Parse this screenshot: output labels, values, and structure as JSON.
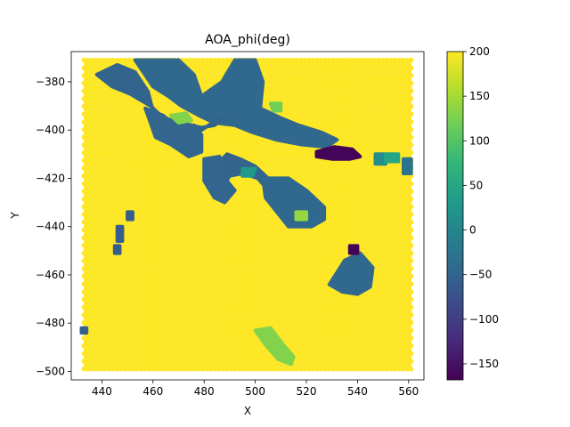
{
  "chart_data": {
    "type": "scatter",
    "title": "AOA_phi(deg)",
    "xlabel": "X",
    "ylabel": "Y",
    "xlim": [
      428,
      566
    ],
    "ylim": [
      -503.5,
      -367.5
    ],
    "x_ticks": [
      440,
      460,
      480,
      500,
      520,
      540,
      560
    ],
    "y_ticks": [
      -380,
      -400,
      -420,
      -440,
      -460,
      -480,
      -500
    ],
    "colorbar": {
      "colormap": "viridis",
      "range": [
        -168,
        200
      ],
      "ticks": [
        200,
        150,
        100,
        50,
        0,
        -50,
        -100,
        -150
      ],
      "colors": [
        "#440154",
        "#482878",
        "#3e4989",
        "#31688e",
        "#26828e",
        "#1f9e89",
        "#35b779",
        "#6ece58",
        "#b5de2b",
        "#fde725"
      ]
    },
    "grid": false,
    "background_point_value": 200,
    "background_region": {
      "x": [
        433,
        561
      ],
      "y": [
        -499,
        -371
      ]
    },
    "regions": [
      {
        "polygon": [
          [
            453,
            -371
          ],
          [
            470,
            -371
          ],
          [
            476,
            -377
          ],
          [
            479,
            -386
          ],
          [
            487,
            -380
          ],
          [
            492,
            -371
          ],
          [
            500,
            -371
          ],
          [
            503,
            -380
          ],
          [
            502,
            -391
          ],
          [
            510,
            -395
          ],
          [
            517,
            -398
          ],
          [
            526,
            -401
          ],
          [
            532,
            -404
          ],
          [
            528,
            -407
          ],
          [
            518,
            -406
          ],
          [
            508,
            -404
          ],
          [
            499,
            -401
          ],
          [
            492,
            -398
          ],
          [
            484,
            -397
          ],
          [
            478,
            -394
          ],
          [
            471,
            -390
          ],
          [
            466,
            -386
          ],
          [
            460,
            -382
          ]
        ],
        "value": -45
      },
      {
        "polygon": [
          [
            438,
            -377
          ],
          [
            446,
            -373
          ],
          [
            453,
            -376
          ],
          [
            458,
            -384
          ],
          [
            460,
            -392
          ],
          [
            467,
            -397
          ],
          [
            473,
            -398
          ],
          [
            479,
            -400
          ],
          [
            486,
            -395
          ],
          [
            491,
            -393
          ],
          [
            484,
            -398
          ],
          [
            479,
            -399
          ],
          [
            471,
            -397
          ],
          [
            464,
            -395
          ],
          [
            459,
            -390
          ],
          [
            451,
            -385
          ],
          [
            444,
            -382
          ]
        ],
        "value": -50
      },
      {
        "polygon": [
          [
            457,
            -391
          ],
          [
            464,
            -394
          ],
          [
            470,
            -399
          ],
          [
            476,
            -398
          ],
          [
            479,
            -402
          ],
          [
            479,
            -409
          ],
          [
            474,
            -411
          ],
          [
            467,
            -406
          ],
          [
            461,
            -403
          ],
          [
            459,
            -397
          ]
        ],
        "value": -48
      },
      {
        "polygon": [
          [
            467,
            -394
          ],
          [
            473,
            -393
          ],
          [
            475,
            -396
          ],
          [
            470,
            -397
          ]
        ],
        "value": 130
      },
      {
        "polygon": [
          [
            506,
            -389
          ],
          [
            510,
            -389
          ],
          [
            510,
            -392
          ],
          [
            507,
            -392
          ]
        ],
        "value": 120
      },
      {
        "polygon": [
          [
            485,
            -414
          ],
          [
            489,
            -410
          ],
          [
            494,
            -412
          ],
          [
            500,
            -415
          ],
          [
            505,
            -420
          ],
          [
            510,
            -425
          ],
          [
            513,
            -427
          ],
          [
            518,
            -426
          ],
          [
            520,
            -429
          ],
          [
            519,
            -434
          ],
          [
            515,
            -436
          ],
          [
            510,
            -431
          ],
          [
            506,
            -426
          ],
          [
            501,
            -420
          ],
          [
            495,
            -418
          ],
          [
            490,
            -419
          ],
          [
            487,
            -424
          ]
        ],
        "value": -50
      },
      {
        "polygon": [
          [
            480,
            -412
          ],
          [
            486,
            -411
          ],
          [
            488,
            -420
          ],
          [
            492,
            -425
          ],
          [
            488,
            -430
          ],
          [
            484,
            -428
          ],
          [
            480,
            -421
          ]
        ],
        "value": -48
      },
      {
        "polygon": [
          [
            503,
            -420
          ],
          [
            513,
            -420
          ],
          [
            520,
            -425
          ],
          [
            527,
            -432
          ],
          [
            527,
            -437
          ],
          [
            522,
            -440
          ],
          [
            513,
            -440
          ],
          [
            507,
            -432
          ],
          [
            504,
            -428
          ]
        ],
        "value": -45
      },
      {
        "polygon": [
          [
            495,
            -416
          ],
          [
            500,
            -416
          ],
          [
            499,
            -419
          ],
          [
            495,
            -419
          ]
        ],
        "value": 30
      },
      {
        "polygon": [
          [
            516,
            -434
          ],
          [
            520,
            -434
          ],
          [
            520,
            -437
          ],
          [
            516,
            -437
          ]
        ],
        "value": 140
      },
      {
        "polygon": [
          [
            524,
            -409
          ],
          [
            531,
            -407
          ],
          [
            538,
            -408
          ],
          [
            541,
            -411
          ],
          [
            537,
            -412
          ],
          [
            530,
            -412
          ],
          [
            524,
            -411
          ]
        ],
        "value": -165
      },
      {
        "polygon": [
          [
            547,
            -410
          ],
          [
            551,
            -410
          ],
          [
            551,
            -414
          ],
          [
            547,
            -414
          ]
        ],
        "value": 10
      },
      {
        "polygon": [
          [
            551,
            -410
          ],
          [
            556,
            -410
          ],
          [
            556,
            -413
          ],
          [
            551,
            -413
          ]
        ],
        "value": 50
      },
      {
        "polygon": [
          [
            558,
            -412
          ],
          [
            561,
            -412
          ],
          [
            561,
            -418
          ],
          [
            558,
            -418
          ]
        ],
        "value": -30
      },
      {
        "polygon": [
          [
            535,
            -454
          ],
          [
            541,
            -451
          ],
          [
            546,
            -457
          ],
          [
            545,
            -465
          ],
          [
            540,
            -468
          ],
          [
            534,
            -467
          ],
          [
            529,
            -464
          ],
          [
            532,
            -459
          ]
        ],
        "value": -45
      },
      {
        "polygon": [
          [
            537,
            -448
          ],
          [
            540,
            -448
          ],
          [
            540,
            -451
          ],
          [
            537,
            -451
          ]
        ],
        "value": -165
      },
      {
        "polygon": [
          [
            500,
            -483
          ],
          [
            506,
            -482
          ],
          [
            511,
            -489
          ],
          [
            515,
            -494
          ],
          [
            514,
            -497
          ],
          [
            509,
            -495
          ],
          [
            504,
            -489
          ]
        ],
        "value": 130
      },
      {
        "polygon": [
          [
            450,
            -434
          ],
          [
            452,
            -434
          ],
          [
            452,
            -437
          ],
          [
            450,
            -437
          ]
        ],
        "value": -60
      },
      {
        "polygon": [
          [
            446,
            -440
          ],
          [
            448,
            -440
          ],
          [
            448,
            -446
          ],
          [
            446,
            -446
          ]
        ],
        "value": -60
      },
      {
        "polygon": [
          [
            445,
            -448
          ],
          [
            447,
            -448
          ],
          [
            447,
            -451
          ],
          [
            445,
            -451
          ]
        ],
        "value": -60
      },
      {
        "polygon": [
          [
            432,
            -482
          ],
          [
            434,
            -482
          ],
          [
            434,
            -484
          ],
          [
            432,
            -484
          ]
        ],
        "value": -55
      }
    ]
  }
}
